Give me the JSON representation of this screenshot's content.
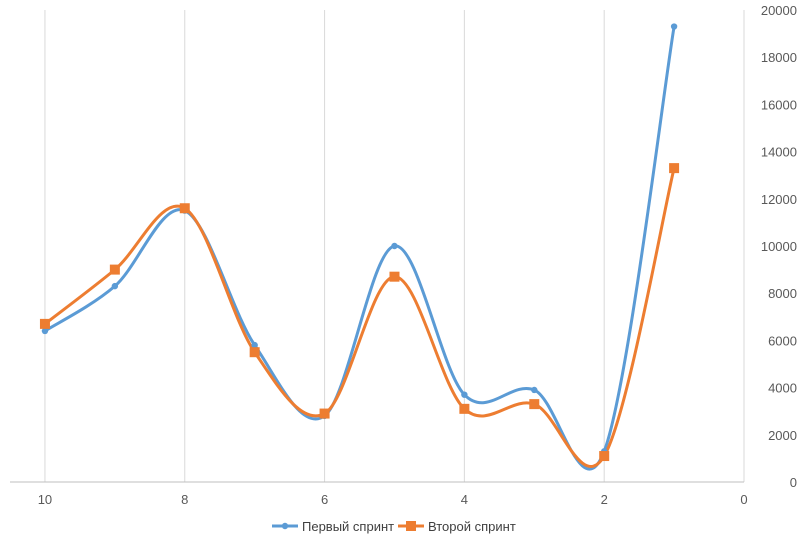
{
  "chart_data": {
    "type": "line",
    "title": "",
    "xlabel": "",
    "ylabel": "",
    "x_reversed": true,
    "y_axis_side": "right",
    "xlim": [
      0,
      10.5
    ],
    "ylim": [
      0,
      20000
    ],
    "xticks": [
      "10",
      "8",
      "6",
      "4",
      "2",
      "0"
    ],
    "yticks": [
      "0",
      "2000",
      "4000",
      "6000",
      "8000",
      "10000",
      "12000",
      "14000",
      "16000",
      "18000",
      "20000"
    ],
    "grid": "vertical",
    "legend_position": "bottom",
    "x": [
      10,
      9,
      8,
      7,
      6,
      5,
      4,
      3,
      2,
      1
    ],
    "series": [
      {
        "name": "Первый спринт",
        "color": "#5B9BD5",
        "marker": "circle",
        "values": [
          6400,
          8300,
          11500,
          5800,
          2800,
          10000,
          3700,
          3900,
          1300,
          19300
        ]
      },
      {
        "name": "Второй спринт",
        "color": "#ED7D31",
        "marker": "square",
        "values": [
          6700,
          9000,
          11600,
          5500,
          2900,
          8700,
          3100,
          3300,
          1100,
          13300
        ]
      }
    ]
  }
}
